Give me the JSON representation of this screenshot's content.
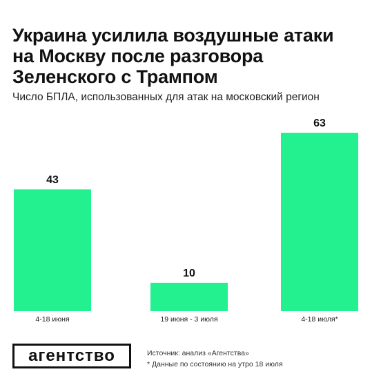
{
  "header": {
    "title": "Украина усилила воздушные атаки\nна Москву после разговора\nЗеленского с Трампом",
    "subtitle": "Число БПЛА, использованных для атак на московский регион"
  },
  "chart_data": {
    "type": "bar",
    "categories": [
      "4-18 июня",
      "19 июня - 3 июля",
      "4-18 июля*"
    ],
    "values": [
      43,
      10,
      63
    ],
    "value_labels": [
      "43",
      "10",
      "63"
    ],
    "ylim": [
      0,
      63
    ],
    "grid": false,
    "bar_color": "#23f08f"
  },
  "footer": {
    "logo": "агентство",
    "source": "Источник: анализ «Агентства»",
    "note": "* Данные по состоянию на утро 18 июля"
  }
}
